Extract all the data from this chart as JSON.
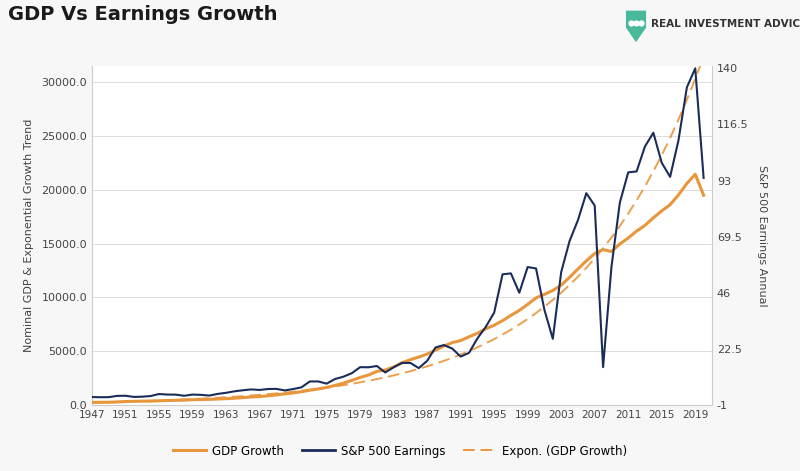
{
  "title": "GDP Vs Earnings Growth",
  "ylabel_left": "Nominal GDP & Exponential Growth Trend",
  "ylabel_right": "S&P 500 Earnings Annual",
  "background_color": "#f7f7f7",
  "plot_bg_color": "#ffffff",
  "title_color": "#1a1a1a",
  "gdp_color": "#e8963c",
  "earnings_color": "#1a2d5a",
  "expon_color": "#e8963c",
  "years": [
    1947,
    1948,
    1949,
    1950,
    1951,
    1952,
    1953,
    1954,
    1955,
    1956,
    1957,
    1958,
    1959,
    1960,
    1961,
    1962,
    1963,
    1964,
    1965,
    1966,
    1967,
    1968,
    1969,
    1970,
    1971,
    1972,
    1973,
    1974,
    1975,
    1976,
    1977,
    1978,
    1979,
    1980,
    1981,
    1982,
    1983,
    1984,
    1985,
    1986,
    1987,
    1988,
    1989,
    1990,
    1991,
    1992,
    1993,
    1994,
    1995,
    1996,
    1997,
    1998,
    1999,
    2000,
    2001,
    2002,
    2003,
    2004,
    2005,
    2006,
    2007,
    2008,
    2009,
    2010,
    2011,
    2012,
    2013,
    2014,
    2015,
    2016,
    2017,
    2018,
    2019,
    2020
  ],
  "gdp": [
    244,
    259,
    258,
    284,
    328,
    346,
    366,
    366,
    399,
    421,
    444,
    456,
    495,
    514,
    531,
    562,
    595,
    635,
    688,
    748,
    789,
    860,
    944,
    1038,
    1127,
    1238,
    1383,
    1497,
    1637,
    1825,
    2030,
    2294,
    2563,
    2789,
    3128,
    3255,
    3537,
    3931,
    4218,
    4460,
    4736,
    5100,
    5482,
    5800,
    5992,
    6342,
    6667,
    7085,
    7415,
    7839,
    8332,
    8794,
    9354,
    9952,
    10286,
    10640,
    11142,
    11868,
    12638,
    13399,
    14078,
    14441,
    14256,
    14964,
    15518,
    16155,
    16692,
    17393,
    18037,
    18610,
    19519,
    20580,
    21440,
    19490
  ],
  "sp500_earnings": [
    2.36,
    2.28,
    2.32,
    2.84,
    2.9,
    2.41,
    2.51,
    2.78,
    3.62,
    3.4,
    3.37,
    2.89,
    3.39,
    3.27,
    2.97,
    3.67,
    4.13,
    4.76,
    5.19,
    5.55,
    5.33,
    5.72,
    5.78,
    5.13,
    5.7,
    6.42,
    8.89,
    8.89,
    7.96,
    9.91,
    10.87,
    12.33,
    14.86,
    14.82,
    15.36,
    12.64,
    14.82,
    16.64,
    16.64,
    14.48,
    17.5,
    23.12,
    24.12,
    22.65,
    19.3,
    20.87,
    26.9,
    31.75,
    37.7,
    53.74,
    54.13,
    46.04,
    56.79,
    56.2,
    38.85,
    26.74,
    54.69,
    67.68,
    76.45,
    87.72,
    82.54,
    14.88,
    56.86,
    83.77,
    96.44,
    96.82,
    107.3,
    113.02,
    100.45,
    94.55,
    109.88,
    132.0,
    140.0,
    94.13
  ],
  "ylim_left": [
    0,
    31500
  ],
  "ylim_right": [
    -1,
    141
  ],
  "yticks_left": [
    0.0,
    5000.0,
    10000.0,
    15000.0,
    20000.0,
    25000.0,
    30000.0
  ],
  "yticks_right": [
    -1,
    22.5,
    46,
    69.5,
    93,
    116.5,
    140
  ],
  "xticks": [
    1947,
    1951,
    1955,
    1959,
    1963,
    1967,
    1971,
    1975,
    1979,
    1983,
    1987,
    1991,
    1995,
    1999,
    2003,
    2007,
    2011,
    2015,
    2019
  ],
  "logo_text": "REAL INVESTMENT ADVICE",
  "logo_color": "#4ab89a"
}
